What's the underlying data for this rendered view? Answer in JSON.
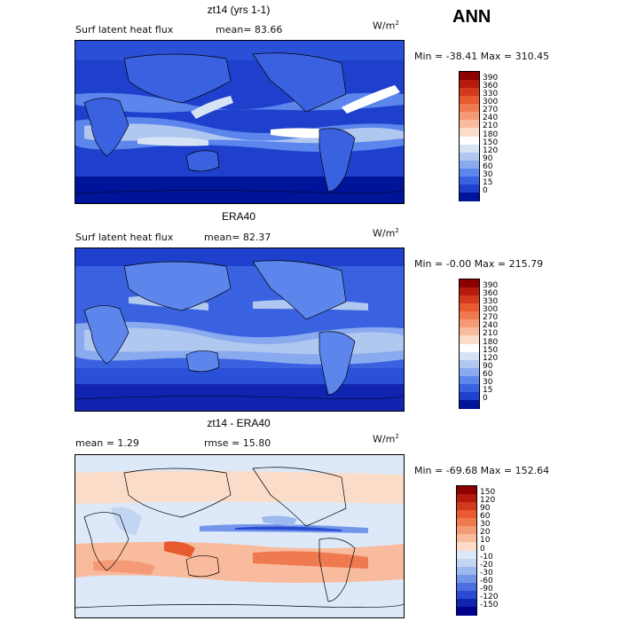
{
  "season": "ANN",
  "units_text": "W/m",
  "units_exp": "2",
  "panels": [
    {
      "title": "zt14 (yrs 1-1)",
      "left_label": "Surf latent heat flux",
      "stat1": "mean=  83.66",
      "stat2": "",
      "minmax": "Min = -38.41 Max = 310.45",
      "colorbar": {
        "labels": [
          "390",
          "360",
          "330",
          "300",
          "270",
          "240",
          "210",
          "180",
          "150",
          "120",
          "90",
          "60",
          "30",
          "15",
          "0"
        ],
        "colors": [
          "#8b0000",
          "#b41a0e",
          "#d23a1e",
          "#e85a30",
          "#f07a50",
          "#f59a76",
          "#f9bb9e",
          "#fbdcc8",
          "#ffffff",
          "#d6e3f5",
          "#b0c8f0",
          "#8aaaf0",
          "#5c86ec",
          "#3a62e0",
          "#1f40cc",
          "#001499"
        ]
      }
    },
    {
      "title": "ERA40",
      "left_label": "Surf latent heat flux",
      "stat1": "mean=  82.37",
      "stat2": "",
      "minmax": "Min =  -0.00 Max = 215.79",
      "colorbar": {
        "labels": [
          "390",
          "360",
          "330",
          "300",
          "270",
          "240",
          "210",
          "180",
          "150",
          "120",
          "90",
          "60",
          "30",
          "15",
          "0"
        ],
        "colors": [
          "#8b0000",
          "#b41a0e",
          "#d23a1e",
          "#e85a30",
          "#f07a50",
          "#f59a76",
          "#f9bb9e",
          "#fbdcc8",
          "#ffffff",
          "#d6e3f5",
          "#b0c8f0",
          "#8aaaf0",
          "#5c86ec",
          "#3a62e0",
          "#1f40cc",
          "#001499"
        ]
      }
    },
    {
      "title": "zt14 - ERA40",
      "left_label": "mean =    1.29",
      "stat1": "rmse =  15.80",
      "stat2": "",
      "minmax": "Min = -69.68 Max = 152.64",
      "colorbar": {
        "labels": [
          "150",
          "120",
          "90",
          "60",
          "30",
          "20",
          "10",
          "0",
          "-10",
          "-20",
          "-30",
          "-60",
          "-90",
          "-120",
          "-150"
        ],
        "colors": [
          "#8b0000",
          "#b41a0e",
          "#d23a1e",
          "#e85a30",
          "#f07a50",
          "#f59a76",
          "#f9bb9e",
          "#fbdcc8",
          "#dde9f8",
          "#c2d5f2",
          "#9cb8ee",
          "#7396ea",
          "#4c70e2",
          "#2a4cd2",
          "#1024b0",
          "#00008f"
        ]
      }
    }
  ]
}
